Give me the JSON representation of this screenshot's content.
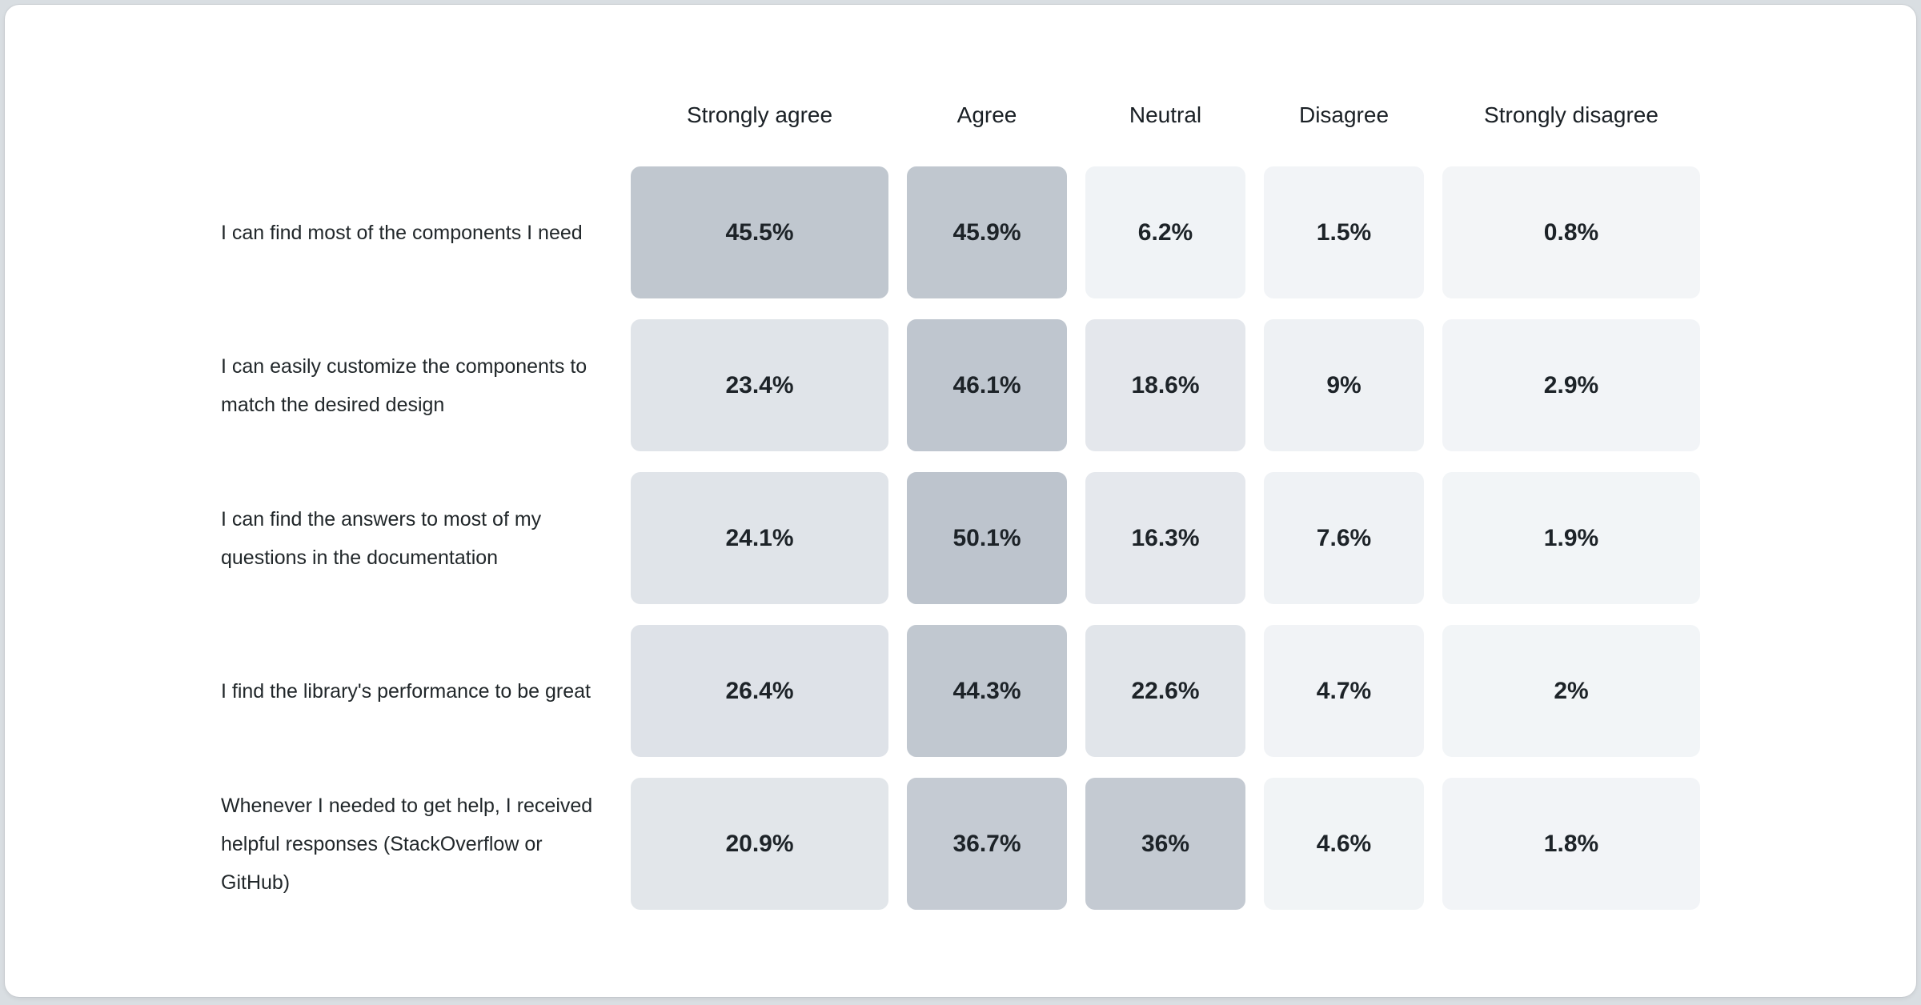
{
  "page": {
    "background_color": "#d9dee2",
    "card_background_color": "#ffffff",
    "text_color": "#21272a"
  },
  "chart_data": {
    "type": "heatmap",
    "title": "",
    "unit": "%",
    "legend_position": "none",
    "grid": "off",
    "columns": [
      "Strongly agree",
      "Agree",
      "Neutral",
      "Disagree",
      "Strongly disagree"
    ],
    "rows": [
      {
        "label": "I can find most of the components I need",
        "values": [
          45.5,
          45.9,
          6.2,
          1.5,
          0.8
        ],
        "display": [
          "45.5%",
          "45.9%",
          "6.2%",
          "1.5%",
          "0.8%"
        ],
        "cell_colors": [
          "#c0c7cf",
          "#c0c7cf",
          "#f0f3f6",
          "#f2f4f7",
          "#f3f5f7"
        ]
      },
      {
        "label": "I can easily customize the components to match the desired design",
        "values": [
          23.4,
          46.1,
          18.6,
          9,
          2.9
        ],
        "display": [
          "23.4%",
          "46.1%",
          "18.6%",
          "9%",
          "2.9%"
        ],
        "cell_colors": [
          "#e0e4e9",
          "#bfc6cf",
          "#e4e7ec",
          "#eef1f4",
          "#f2f4f7"
        ]
      },
      {
        "label": "I can find the answers to most of my questions in the documentation",
        "values": [
          24.1,
          50.1,
          16.3,
          7.6,
          1.9
        ],
        "display": [
          "24.1%",
          "50.1%",
          "16.3%",
          "7.6%",
          "1.9%"
        ],
        "cell_colors": [
          "#e0e4e9",
          "#bdc4cd",
          "#e5e8ed",
          "#eff2f5",
          "#f2f5f7"
        ]
      },
      {
        "label": "I find the library's performance to be great",
        "values": [
          26.4,
          44.3,
          22.6,
          4.7,
          2
        ],
        "display": [
          "26.4%",
          "44.3%",
          "22.6%",
          "4.7%",
          "2%"
        ],
        "cell_colors": [
          "#dee2e8",
          "#c1c8d0",
          "#e1e5ea",
          "#f1f3f6",
          "#f2f5f7"
        ]
      },
      {
        "label": "Whenever I needed to get help, I received helpful responses (StackOverflow or GitHub)",
        "values": [
          20.9,
          36.7,
          36,
          4.6,
          1.8
        ],
        "display": [
          "20.9%",
          "36.7%",
          "36%",
          "4.6%",
          "1.8%"
        ],
        "cell_colors": [
          "#e2e6ea",
          "#c5cbd3",
          "#c4cad2",
          "#f1f4f6",
          "#f2f4f7"
        ]
      }
    ],
    "color_scale": {
      "low_color": "#f3f5f8",
      "high_color": "#bdc4cd",
      "domain": [
        0,
        50.1
      ]
    }
  }
}
